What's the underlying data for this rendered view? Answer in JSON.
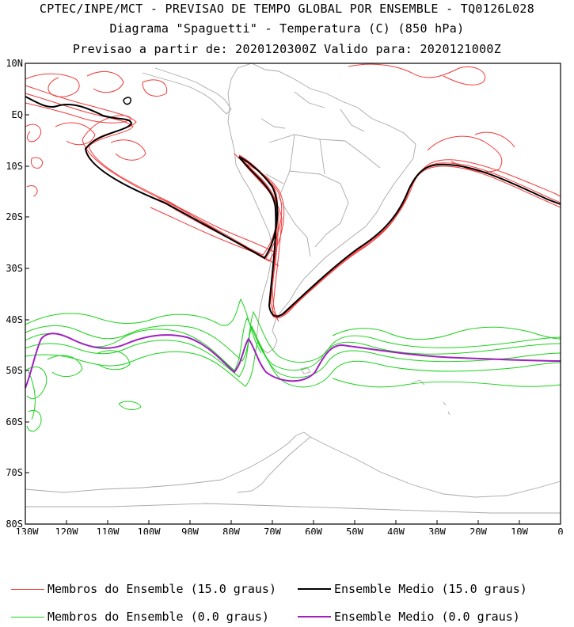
{
  "header": {
    "line1": "CPTEC/INPE/MCT - PREVISAO DE TEMPO GLOBAL POR ENSEMBLE - TQ0126L028",
    "line2": "Diagrama \"Spaguetti\" - Temperatura (C) (850 hPa)",
    "line3": "Previsao a partir de: 2020120300Z  Valido para: 2020121000Z"
  },
  "axes": {
    "lat_labels": [
      "10N",
      "EQ",
      "10S",
      "20S",
      "30S",
      "40S",
      "50S",
      "60S",
      "70S",
      "80S"
    ],
    "lon_labels": [
      "130W",
      "120W",
      "110W",
      "100W",
      "90W",
      "80W",
      "70W",
      "60W",
      "50W",
      "40W",
      "30W",
      "20W",
      "10W",
      "0"
    ]
  },
  "legend": {
    "red_members": "Membros do Ensemble (15.0 graus)",
    "black_mean": "Ensemble Medio (15.0 graus)",
    "green_members": "Membros do Ensemble (0.0 graus)",
    "purple_mean": "Ensemble Medio (0.0 graus)"
  },
  "colors": {
    "red_members": "#f23a3a",
    "black_mean": "#000000",
    "green_members": "#19d219",
    "purple_mean": "#a020c0",
    "coast": "#a8a8a8"
  }
}
